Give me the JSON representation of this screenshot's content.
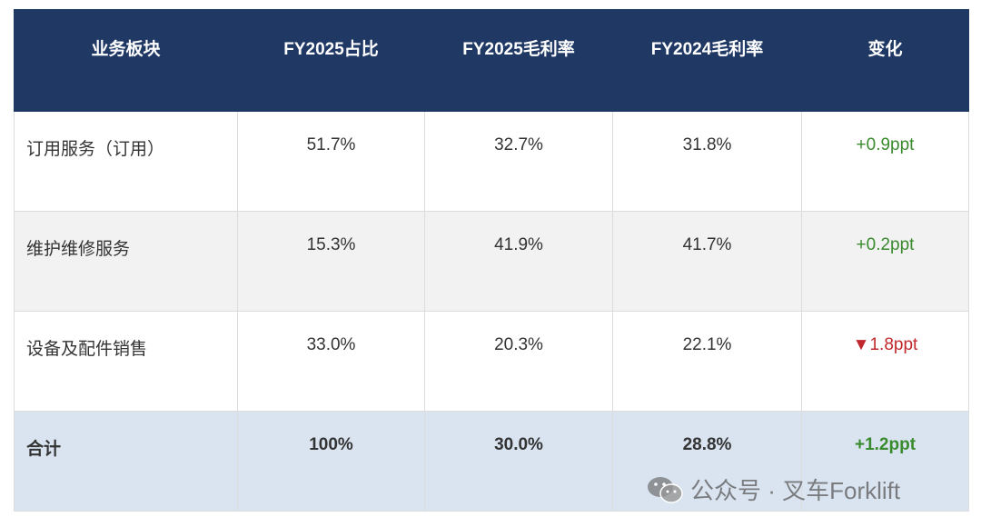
{
  "table": {
    "header": [
      "业务板块",
      "FY2025占比",
      "FY2025毛利率",
      "FY2024毛利率",
      "变化"
    ],
    "rows": [
      [
        "订用服务（订用）",
        "51.7%",
        "32.7%",
        "31.8%",
        "+0.9ppt"
      ],
      [
        "维护维修服务",
        "15.3%",
        "41.9%",
        "41.7%",
        "+0.2ppt"
      ],
      [
        "设备及配件销售",
        "33.0%",
        "20.3%",
        "22.1%",
        "▼1.8ppt"
      ]
    ],
    "total": [
      "合计",
      "100%",
      "30.0%",
      "28.8%",
      "+1.2ppt"
    ]
  },
  "watermark": "公众号 · 叉车Forklift"
}
